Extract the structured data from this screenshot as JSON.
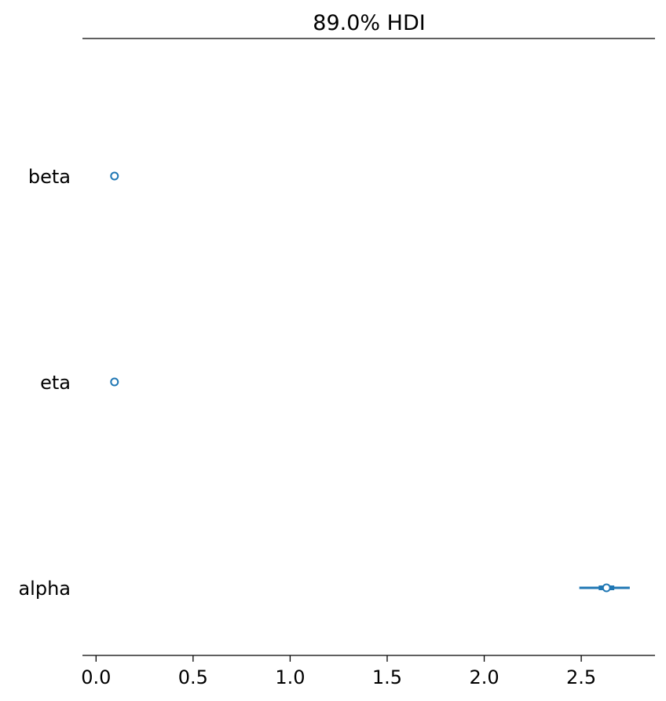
{
  "chart_data": {
    "type": "forest",
    "title": "89.0% HDI",
    "xlabel": "",
    "ylabel": "",
    "xlim": [
      -0.07,
      2.88
    ],
    "x_ticks": [
      0.0,
      0.5,
      1.0,
      1.5,
      2.0,
      2.5
    ],
    "x_tick_labels": [
      "0.0",
      "0.5",
      "1.0",
      "1.5",
      "2.0",
      "2.5"
    ],
    "grid": false,
    "color": "#1f77b4",
    "variables": [
      {
        "name": "beta",
        "median": 0.095,
        "hdi_low": 0.095,
        "hdi_high": 0.095,
        "iqr_low": 0.095,
        "iqr_high": 0.095
      },
      {
        "name": "eta",
        "median": 0.095,
        "hdi_low": 0.095,
        "hdi_high": 0.095,
        "iqr_low": 0.095,
        "iqr_high": 0.095
      },
      {
        "name": "alpha",
        "median": 2.63,
        "hdi_low": 2.49,
        "hdi_high": 2.75,
        "iqr_low": 2.59,
        "iqr_high": 2.67
      }
    ]
  }
}
